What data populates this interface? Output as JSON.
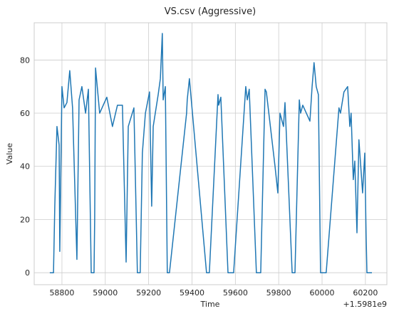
{
  "chart_data": {
    "type": "line",
    "title": "VS.csv (Aggressive)",
    "x_label": "Time",
    "y_label": "Value",
    "x_offset_label": "+1.5981e9",
    "x": [
      58744,
      58761,
      58767,
      58777,
      58787,
      58790,
      58800,
      58810,
      58823,
      58836,
      58849,
      58869,
      58879,
      58892,
      58909,
      58922,
      58935,
      58948,
      58951,
      58955,
      58974,
      59007,
      59033,
      59056,
      59079,
      59096,
      59106,
      59132,
      59148,
      59161,
      59171,
      59185,
      59204,
      59214,
      59221,
      59244,
      59254,
      59263,
      59267,
      59277,
      59286,
      59296,
      59375,
      59378,
      59388,
      59467,
      59480,
      59520,
      59523,
      59533,
      59566,
      59592,
      59648,
      59655,
      59664,
      59697,
      59717,
      59737,
      59743,
      59783,
      59796,
      59806,
      59822,
      59829,
      59862,
      59875,
      59895,
      59901,
      59911,
      59944,
      59954,
      59963,
      59973,
      59983,
      59993,
      60019,
      60078,
      60085,
      60101,
      60118,
      60128,
      60134,
      60144,
      60151,
      60161,
      60170,
      60187,
      60197,
      60203,
      60207,
      60223,
      60230
    ],
    "series": [
      {
        "name": "Value",
        "color": "#1f77b4",
        "values": [
          0,
          0,
          25,
          55,
          48,
          8,
          70,
          62,
          64,
          76,
          62,
          5,
          65,
          70,
          60,
          69,
          0,
          0,
          20,
          77,
          60,
          66,
          55,
          63,
          63,
          4,
          55,
          62,
          0,
          0,
          45,
          60,
          68,
          25,
          55,
          67,
          73,
          90,
          65,
          70,
          0,
          0,
          60,
          65,
          73,
          0,
          0,
          67,
          63,
          66,
          0,
          0,
          70,
          65,
          69,
          0,
          0,
          69,
          68,
          40,
          30,
          60,
          55,
          64,
          0,
          0,
          65,
          60,
          63,
          57,
          70,
          79,
          70,
          67,
          0,
          0,
          62,
          60,
          68,
          70,
          55,
          60,
          35,
          42,
          15,
          50,
          30,
          45,
          15,
          0,
          0,
          0
        ]
      }
    ],
    "xlim": [
      58672,
      60299
    ],
    "ylim": [
      -4.5,
      94
    ],
    "xticks": [
      58800,
      59000,
      59200,
      59400,
      59600,
      59800,
      60000,
      60200
    ],
    "yticks": [
      0,
      20,
      40,
      60,
      80
    ],
    "grid": true
  }
}
